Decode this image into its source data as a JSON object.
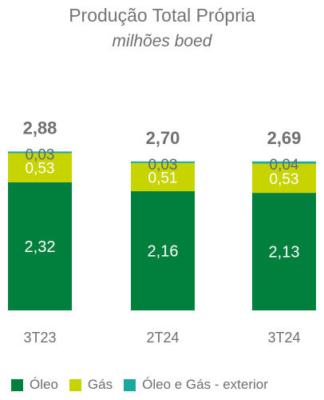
{
  "chart_data": {
    "type": "bar",
    "stacked": true,
    "title": "Produção Total Própria",
    "subtitle": "milhões boed",
    "categories": [
      "3T23",
      "2T24",
      "3T24"
    ],
    "totals": [
      "2,88",
      "2,70",
      "2,69"
    ],
    "series": [
      {
        "name": "Óleo",
        "color": "#007f3d",
        "values": [
          2.32,
          2.16,
          2.13
        ],
        "labels": [
          "2,32",
          "2,16",
          "2,13"
        ]
      },
      {
        "name": "Gás",
        "color": "#c7d400",
        "values": [
          0.53,
          0.51,
          0.53
        ],
        "labels": [
          "0,53",
          "0,51",
          "0,53"
        ]
      },
      {
        "name": "Óleo e Gás - exterior",
        "color": "#1ba8a0",
        "values": [
          0.03,
          0.03,
          0.04
        ],
        "labels": [
          "0,03",
          "0,03",
          "0,04"
        ]
      }
    ],
    "legend_position": "bottom",
    "grid": false
  }
}
